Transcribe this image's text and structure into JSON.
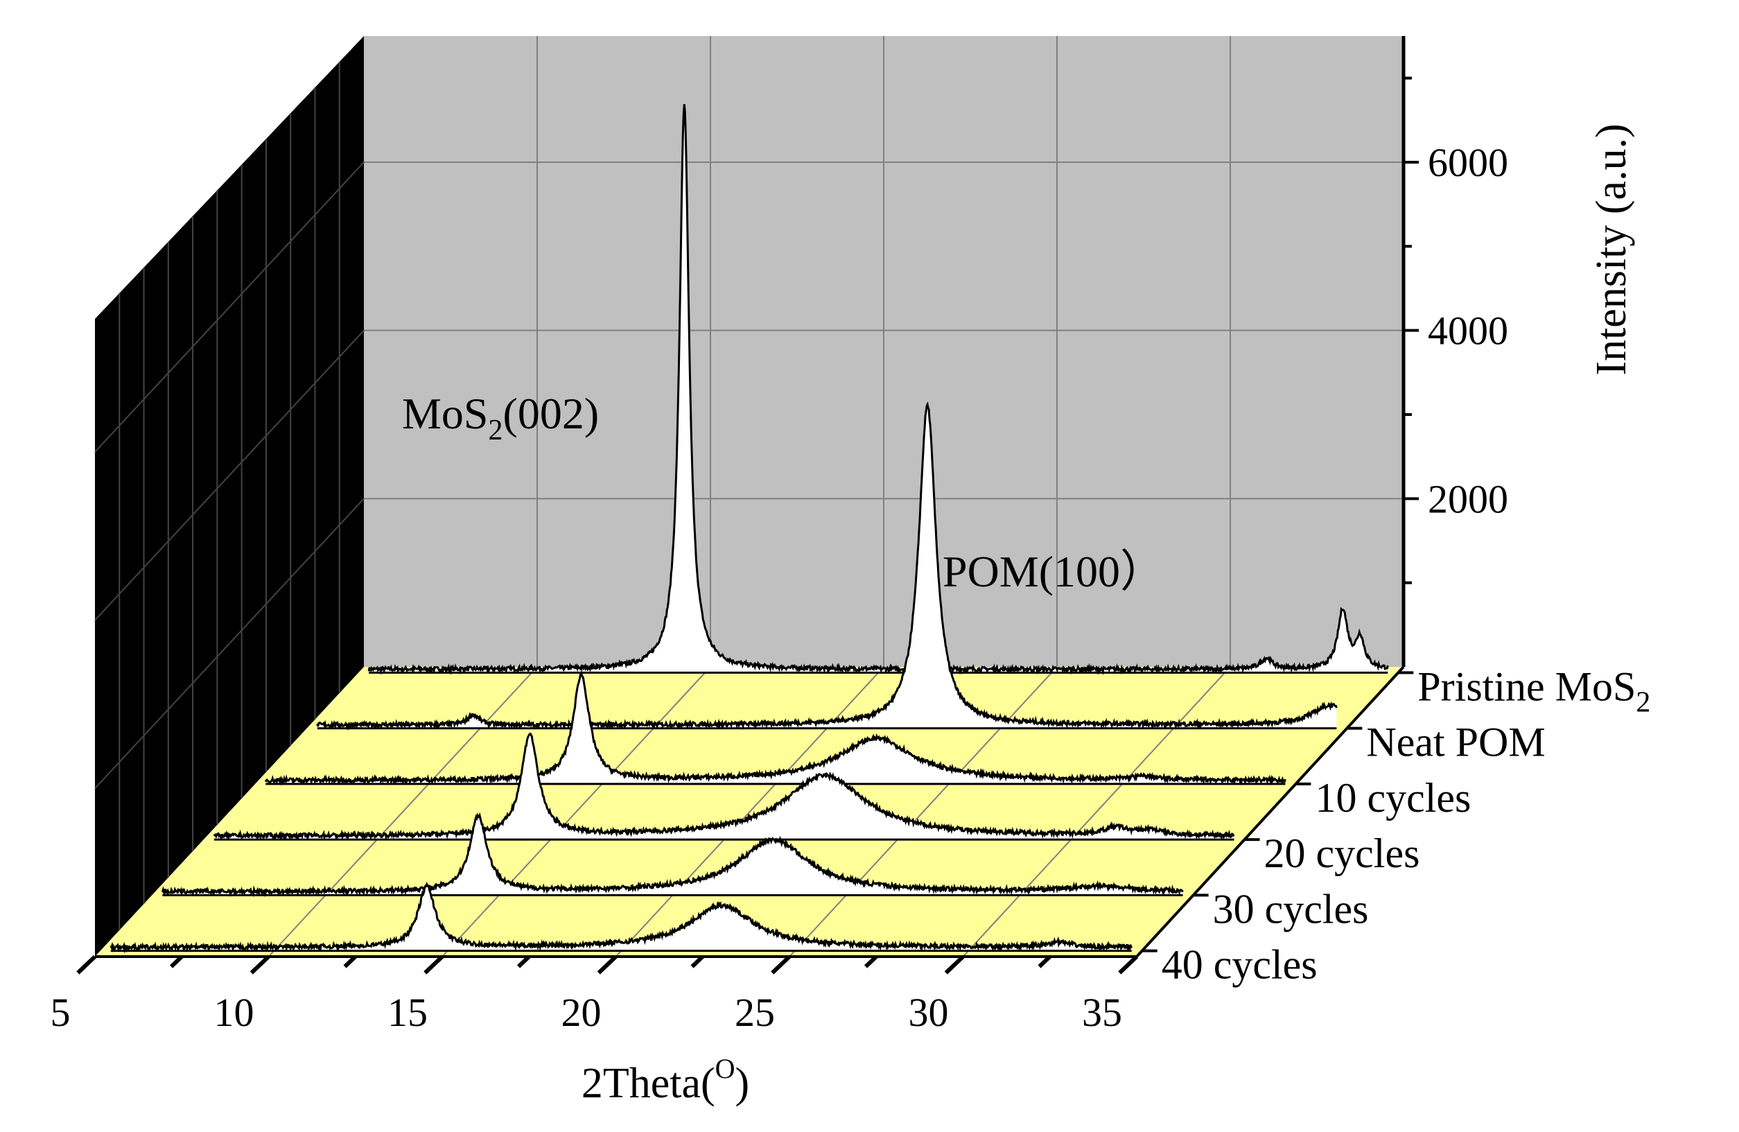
{
  "chart_data": {
    "type": "line",
    "style": "3d-waterfall",
    "title": "",
    "xlabel": "2Theta(",
    "xlabel_superscript": "O",
    "xlabel_suffix": ")",
    "ylabel": "Intensity (a.u.)",
    "xlim": [
      5,
      35
    ],
    "ylim": [
      0,
      7500
    ],
    "x_ticks": [
      "5",
      "10",
      "15",
      "20",
      "25",
      "30",
      "35"
    ],
    "y_ticks": [
      "2000",
      "4000",
      "6000"
    ],
    "grid": true,
    "series": [
      {
        "name": "Pristine MoS2",
        "label": "Pristine MoS",
        "label_subscript": "2",
        "peaks": [
          [
            14.4,
            6700,
            0.17
          ],
          [
            31.2,
            130,
            0.2
          ],
          [
            33.4,
            700,
            0.17
          ],
          [
            33.9,
            360,
            0.15
          ]
        ],
        "color": "#000000"
      },
      {
        "name": "Neat POM",
        "label": "Neat POM",
        "peaks": [
          [
            9.8,
            120,
            0.2
          ],
          [
            22.9,
            3800,
            0.3
          ],
          [
            34.5,
            230,
            0.6
          ]
        ],
        "color": "#000000"
      },
      {
        "name": "10 cycles",
        "label": "10 cycles",
        "peaks": [
          [
            14.4,
            1250,
            0.28
          ],
          [
            22.9,
            500,
            1.3
          ],
          [
            30.6,
            40,
            0.5
          ]
        ],
        "color": "#000000"
      },
      {
        "name": "20 cycles",
        "label": "20 cycles",
        "peaks": [
          [
            14.4,
            1200,
            0.3
          ],
          [
            22.9,
            720,
            1.4
          ],
          [
            31.3,
            90,
            0.4
          ],
          [
            32.3,
            60,
            0.4
          ]
        ],
        "color": "#000000"
      },
      {
        "name": "30 cycles",
        "label": "30 cycles",
        "peaks": [
          [
            14.4,
            900,
            0.3
          ],
          [
            22.9,
            620,
            1.2
          ],
          [
            32.3,
            60,
            1.0
          ]
        ],
        "color": "#000000"
      },
      {
        "name": "40 cycles",
        "label": "40 cycles",
        "peaks": [
          [
            14.4,
            720,
            0.3
          ],
          [
            22.9,
            500,
            1.1
          ],
          [
            32.6,
            60,
            0.4
          ]
        ],
        "color": "#000000"
      }
    ],
    "annotations": [
      {
        "text": "MoS",
        "subscript": "2",
        "suffix": "(002)"
      },
      {
        "text": "POM(100）"
      }
    ]
  },
  "colors": {
    "back_wall": "#c0c0c0",
    "side_wall": "#000000",
    "floor": "#ffff99",
    "fill": "#ffffff",
    "line": "#000000",
    "grid": "#808080"
  }
}
